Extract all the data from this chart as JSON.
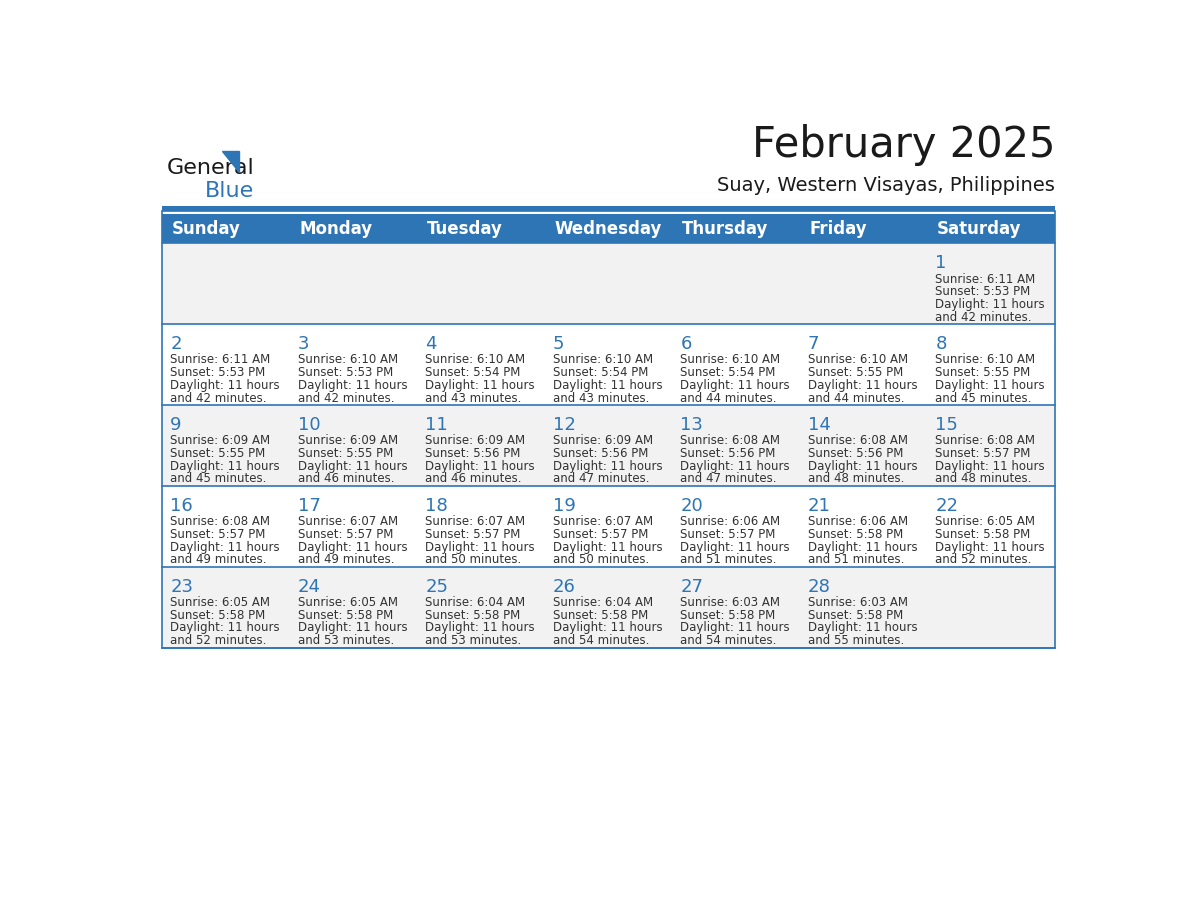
{
  "title": "February 2025",
  "subtitle": "Suay, Western Visayas, Philippines",
  "header_bg": "#2e75b6",
  "header_text_color": "#ffffff",
  "day_names": [
    "Sunday",
    "Monday",
    "Tuesday",
    "Wednesday",
    "Thursday",
    "Friday",
    "Saturday"
  ],
  "alt_row_bg": "#f2f2f2",
  "white_bg": "#ffffff",
  "border_color": "#2e75b6",
  "day_number_color": "#2e75b6",
  "cell_text_color": "#333333",
  "logo_general_color": "#1a1a1a",
  "logo_blue_color": "#2e75b6",
  "calendar": [
    [
      null,
      null,
      null,
      null,
      null,
      null,
      {
        "day": 1,
        "sunrise": "6:11 AM",
        "sunset": "5:53 PM",
        "daylight": "11 hours and 42 minutes"
      }
    ],
    [
      {
        "day": 2,
        "sunrise": "6:11 AM",
        "sunset": "5:53 PM",
        "daylight": "11 hours and 42 minutes"
      },
      {
        "day": 3,
        "sunrise": "6:10 AM",
        "sunset": "5:53 PM",
        "daylight": "11 hours and 42 minutes"
      },
      {
        "day": 4,
        "sunrise": "6:10 AM",
        "sunset": "5:54 PM",
        "daylight": "11 hours and 43 minutes"
      },
      {
        "day": 5,
        "sunrise": "6:10 AM",
        "sunset": "5:54 PM",
        "daylight": "11 hours and 43 minutes"
      },
      {
        "day": 6,
        "sunrise": "6:10 AM",
        "sunset": "5:54 PM",
        "daylight": "11 hours and 44 minutes"
      },
      {
        "day": 7,
        "sunrise": "6:10 AM",
        "sunset": "5:55 PM",
        "daylight": "11 hours and 44 minutes"
      },
      {
        "day": 8,
        "sunrise": "6:10 AM",
        "sunset": "5:55 PM",
        "daylight": "11 hours and 45 minutes"
      }
    ],
    [
      {
        "day": 9,
        "sunrise": "6:09 AM",
        "sunset": "5:55 PM",
        "daylight": "11 hours and 45 minutes"
      },
      {
        "day": 10,
        "sunrise": "6:09 AM",
        "sunset": "5:55 PM",
        "daylight": "11 hours and 46 minutes"
      },
      {
        "day": 11,
        "sunrise": "6:09 AM",
        "sunset": "5:56 PM",
        "daylight": "11 hours and 46 minutes"
      },
      {
        "day": 12,
        "sunrise": "6:09 AM",
        "sunset": "5:56 PM",
        "daylight": "11 hours and 47 minutes"
      },
      {
        "day": 13,
        "sunrise": "6:08 AM",
        "sunset": "5:56 PM",
        "daylight": "11 hours and 47 minutes"
      },
      {
        "day": 14,
        "sunrise": "6:08 AM",
        "sunset": "5:56 PM",
        "daylight": "11 hours and 48 minutes"
      },
      {
        "day": 15,
        "sunrise": "6:08 AM",
        "sunset": "5:57 PM",
        "daylight": "11 hours and 48 minutes"
      }
    ],
    [
      {
        "day": 16,
        "sunrise": "6:08 AM",
        "sunset": "5:57 PM",
        "daylight": "11 hours and 49 minutes"
      },
      {
        "day": 17,
        "sunrise": "6:07 AM",
        "sunset": "5:57 PM",
        "daylight": "11 hours and 49 minutes"
      },
      {
        "day": 18,
        "sunrise": "6:07 AM",
        "sunset": "5:57 PM",
        "daylight": "11 hours and 50 minutes"
      },
      {
        "day": 19,
        "sunrise": "6:07 AM",
        "sunset": "5:57 PM",
        "daylight": "11 hours and 50 minutes"
      },
      {
        "day": 20,
        "sunrise": "6:06 AM",
        "sunset": "5:57 PM",
        "daylight": "11 hours and 51 minutes"
      },
      {
        "day": 21,
        "sunrise": "6:06 AM",
        "sunset": "5:58 PM",
        "daylight": "11 hours and 51 minutes"
      },
      {
        "day": 22,
        "sunrise": "6:05 AM",
        "sunset": "5:58 PM",
        "daylight": "11 hours and 52 minutes"
      }
    ],
    [
      {
        "day": 23,
        "sunrise": "6:05 AM",
        "sunset": "5:58 PM",
        "daylight": "11 hours and 52 minutes"
      },
      {
        "day": 24,
        "sunrise": "6:05 AM",
        "sunset": "5:58 PM",
        "daylight": "11 hours and 53 minutes"
      },
      {
        "day": 25,
        "sunrise": "6:04 AM",
        "sunset": "5:58 PM",
        "daylight": "11 hours and 53 minutes"
      },
      {
        "day": 26,
        "sunrise": "6:04 AM",
        "sunset": "5:58 PM",
        "daylight": "11 hours and 54 minutes"
      },
      {
        "day": 27,
        "sunrise": "6:03 AM",
        "sunset": "5:58 PM",
        "daylight": "11 hours and 54 minutes"
      },
      {
        "day": 28,
        "sunrise": "6:03 AM",
        "sunset": "5:58 PM",
        "daylight": "11 hours and 55 minutes"
      },
      null
    ]
  ]
}
